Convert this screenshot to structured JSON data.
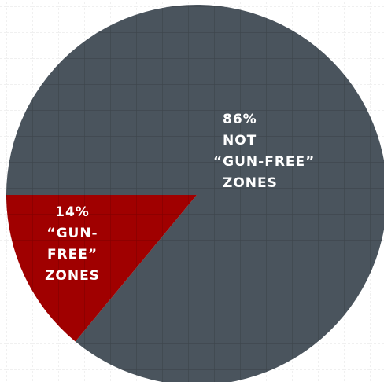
{
  "chart_data": {
    "type": "pie",
    "values": [
      86,
      14
    ],
    "value_labels": [
      "86%",
      "14%"
    ],
    "category_lines": [
      [
        "NOT",
        "“GUN-FREE”",
        "ZONES"
      ],
      [
        "“GUN-",
        "FREE”",
        "ZONES"
      ]
    ],
    "colors": [
      "#4a545d",
      "#a00000"
    ]
  }
}
